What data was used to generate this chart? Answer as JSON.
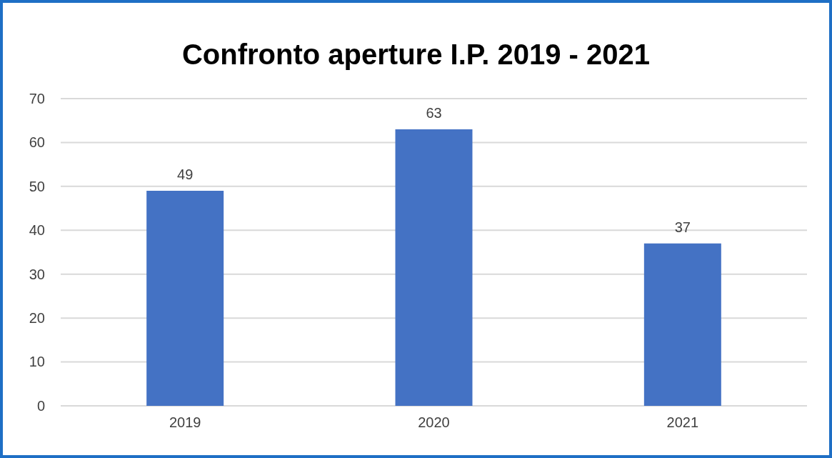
{
  "chart_data": {
    "type": "bar",
    "title": "Confronto aperture I.P. 2019 - 2021",
    "categories": [
      "2019",
      "2020",
      "2021"
    ],
    "values": [
      49,
      63,
      37
    ],
    "color": "#4472c4",
    "ylim": [
      0,
      70
    ],
    "yticks": [
      0,
      10,
      20,
      30,
      40,
      50,
      60,
      70
    ],
    "grid": "y",
    "data_labels": true
  }
}
